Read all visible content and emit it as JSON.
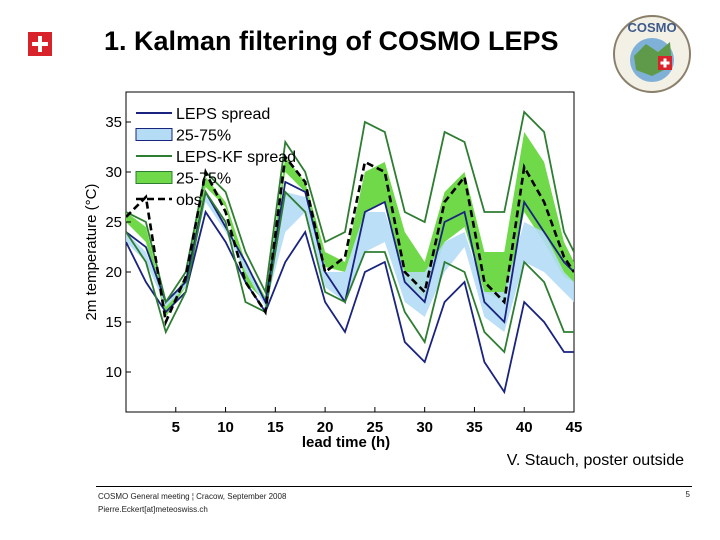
{
  "slide": {
    "title": "1.   Kalman filtering of COSMO LEPS",
    "credit": "V. Stauch, poster outside",
    "footer_line1": "COSMO General meeting ¦ Cracow, September 2008",
    "footer_line2": "Pierre.Eckert[at]meteoswiss.ch",
    "page_number": "5",
    "logo_text": "COSMO"
  },
  "colors": {
    "leps": "#1a237e",
    "leps_band": "#b4dcf5",
    "kf": "#2e7d32",
    "kf_band": "#6fd94a",
    "obs": "#000000",
    "swiss_red": "#d8232a"
  },
  "chart_data": {
    "type": "line",
    "title": "",
    "xlabel": "lead time (h)",
    "ylabel": "2m temperature (°C)",
    "xlim": [
      0,
      45
    ],
    "ylim": [
      6,
      38
    ],
    "xticks": [
      5,
      10,
      15,
      20,
      25,
      30,
      35,
      40,
      45
    ],
    "yticks": [
      10,
      15,
      20,
      25,
      30,
      35
    ],
    "x": [
      0,
      2,
      4,
      6,
      8,
      10,
      12,
      14,
      16,
      18,
      20,
      22,
      24,
      26,
      28,
      30,
      32,
      34,
      36,
      38,
      40,
      42,
      44,
      45
    ],
    "legend": {
      "position": "top-left",
      "entries": [
        {
          "label": "LEPS spread",
          "style": "line",
          "series": "leps"
        },
        {
          "label": "25-75%",
          "style": "band",
          "series": "leps"
        },
        {
          "label": "LEPS-KF spread",
          "style": "line",
          "series": "kf"
        },
        {
          "label": "25-75%",
          "style": "band",
          "series": "kf"
        },
        {
          "label": "obs",
          "style": "dashed",
          "series": "obs"
        }
      ]
    },
    "series": [
      {
        "name": "LEPS spread min",
        "group": "leps",
        "values": [
          23,
          19,
          16,
          18,
          26,
          23,
          19,
          16,
          21,
          24,
          17,
          14,
          20,
          21,
          13,
          11,
          17,
          19,
          11,
          8,
          17,
          15,
          12,
          12
        ]
      },
      {
        "name": "LEPS spread max",
        "group": "leps",
        "values": [
          24,
          22.5,
          17,
          19,
          28,
          24.5,
          21,
          17,
          29,
          28,
          20,
          17,
          26,
          27,
          19,
          17,
          25,
          26,
          17,
          15,
          27,
          24,
          21,
          20
        ]
      },
      {
        "name": "LEPS 25%",
        "group": "leps",
        "values": [
          23,
          21,
          16.5,
          18.5,
          27,
          24,
          20,
          16.5,
          24,
          26,
          18.5,
          17,
          22,
          23,
          17,
          15.5,
          20,
          22.5,
          15.5,
          14,
          21,
          20,
          18,
          17
        ]
      },
      {
        "name": "LEPS 75%",
        "group": "leps",
        "values": [
          24,
          22,
          17,
          19,
          28,
          24.5,
          21,
          17,
          28,
          27.5,
          20,
          20,
          26,
          26,
          20,
          20,
          23,
          24,
          18,
          18,
          25,
          24,
          20,
          19
        ]
      },
      {
        "name": "LEPS-KF spread min",
        "group": "kf",
        "values": [
          24,
          21,
          14,
          18,
          28,
          25,
          17,
          16,
          28,
          26,
          18,
          17,
          22,
          22,
          16,
          13,
          21,
          20,
          14,
          12,
          21,
          19,
          14,
          14
        ]
      },
      {
        "name": "LEPS-KF spread max",
        "group": "kf",
        "values": [
          26,
          25,
          17,
          20,
          30,
          28,
          22,
          18,
          33,
          30,
          23,
          24,
          35,
          34,
          26,
          25,
          34,
          33,
          26,
          26,
          36,
          34,
          24,
          22
        ]
      },
      {
        "name": "LEPS-KF 25%",
        "group": "kf",
        "values": [
          25,
          23,
          15.5,
          18.5,
          28.5,
          26.5,
          19,
          17,
          30,
          28,
          20.5,
          20,
          26,
          27,
          19,
          17.5,
          23,
          24.5,
          18,
          17,
          26,
          23,
          19.5,
          19
        ]
      },
      {
        "name": "LEPS-KF 75%",
        "group": "kf",
        "values": [
          26,
          24.5,
          16.5,
          19.5,
          29.5,
          27,
          21,
          17.5,
          31.5,
          29,
          22,
          21,
          30,
          31,
          24,
          21,
          28,
          30,
          22,
          22,
          34,
          31,
          23,
          21
        ]
      },
      {
        "name": "obs",
        "group": "obs",
        "values": [
          25.5,
          27.5,
          15,
          19.5,
          30,
          26,
          19,
          16,
          31.5,
          29,
          20,
          21.5,
          31,
          30,
          20,
          18,
          27,
          29.5,
          19,
          17,
          30.5,
          27,
          21.5,
          20
        ]
      }
    ]
  }
}
